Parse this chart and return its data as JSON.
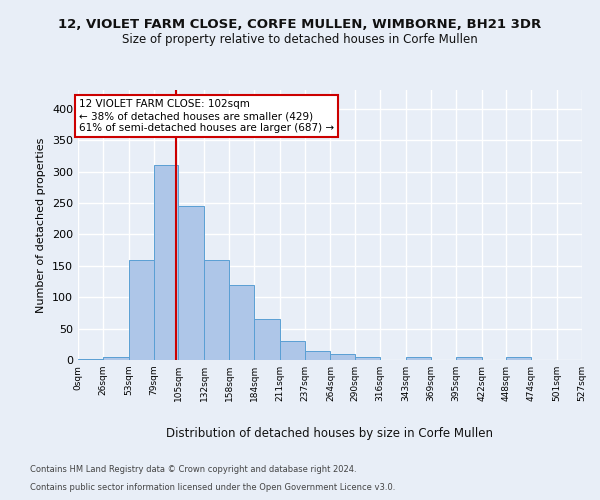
{
  "title_line1": "12, VIOLET FARM CLOSE, CORFE MULLEN, WIMBORNE, BH21 3DR",
  "title_line2": "Size of property relative to detached houses in Corfe Mullen",
  "xlabel": "Distribution of detached houses by size in Corfe Mullen",
  "ylabel": "Number of detached properties",
  "bin_edges": [
    0,
    26,
    53,
    79,
    105,
    132,
    158,
    184,
    211,
    237,
    264,
    290,
    316,
    343,
    369,
    395,
    422,
    448,
    474,
    501,
    527
  ],
  "bar_heights": [
    2,
    5,
    160,
    310,
    245,
    160,
    120,
    65,
    30,
    15,
    10,
    5,
    0,
    5,
    0,
    5,
    0,
    5,
    0,
    0
  ],
  "bar_color": "#aec6e8",
  "bar_edge_color": "#5a9fd4",
  "property_size": 102,
  "property_line_color": "#cc0000",
  "annotation_text": "12 VIOLET FARM CLOSE: 102sqm\n← 38% of detached houses are smaller (429)\n61% of semi-detached houses are larger (687) →",
  "annotation_box_color": "#ffffff",
  "annotation_box_edge_color": "#cc0000",
  "ylim": [
    0,
    430
  ],
  "yticks": [
    0,
    50,
    100,
    150,
    200,
    250,
    300,
    350,
    400
  ],
  "footer_line1": "Contains HM Land Registry data © Crown copyright and database right 2024.",
  "footer_line2": "Contains public sector information licensed under the Open Government Licence v3.0.",
  "background_color": "#e8eef7",
  "grid_color": "#ffffff"
}
